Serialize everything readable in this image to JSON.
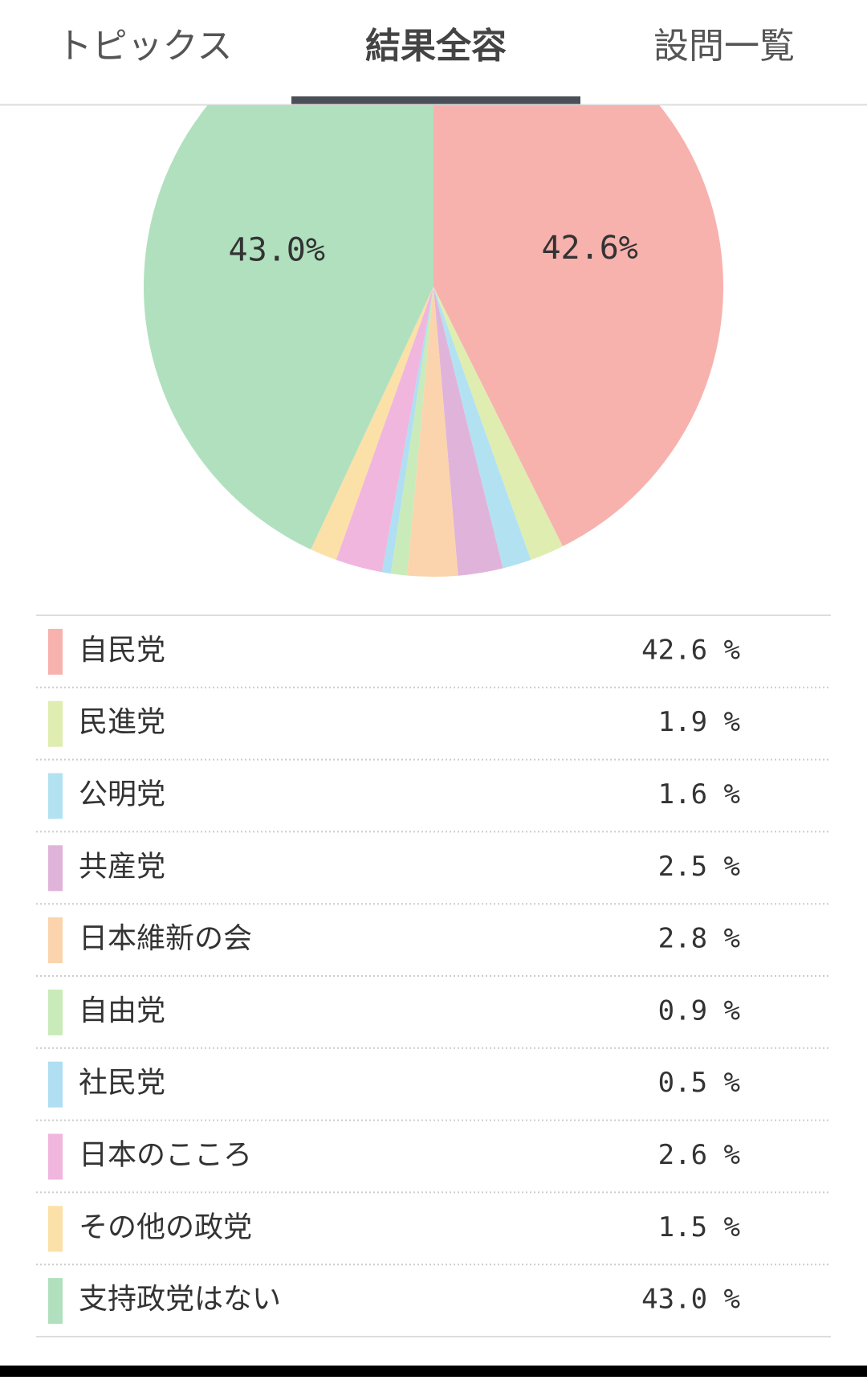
{
  "tabs": [
    "トピックス",
    "結果全容",
    "設問一覧"
  ],
  "active_tab": 1,
  "chart_data": {
    "type": "pie",
    "categories": [
      "自民党",
      "民進党",
      "公明党",
      "共産党",
      "日本維新の会",
      "自由党",
      "社民党",
      "日本のこころ",
      "その他の政党",
      "支持政党はない"
    ],
    "values": [
      42.6,
      1.9,
      1.6,
      2.5,
      2.8,
      0.9,
      0.5,
      2.6,
      1.5,
      43.0
    ],
    "value_labels": [
      "42.6%",
      null,
      null,
      null,
      null,
      null,
      null,
      null,
      null,
      "43.0%"
    ],
    "legend_value_labels": [
      "42.6 %",
      "1.9 %",
      "1.6 %",
      "2.5 %",
      "2.8 %",
      "0.9 %",
      "0.5 %",
      "2.6 %",
      "1.5 %",
      "43.0 %"
    ],
    "colors": [
      "#f7b2ae",
      "#dfedb0",
      "#b2e2f2",
      "#e0b4da",
      "#fbd4ad",
      "#c9ebb9",
      "#b0def2",
      "#f0b6de",
      "#fbe0a8",
      "#b1e0be"
    ]
  }
}
